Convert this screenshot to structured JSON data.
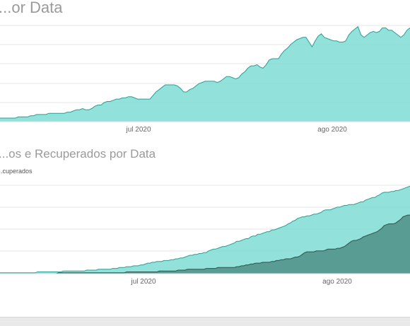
{
  "colors": {
    "confirmed": "#7fdcd3",
    "confirmed_line": "#2e9e94",
    "recovered": "#4f8f86",
    "recovered_line": "#2e524d",
    "title": "#9a9a9a",
    "gridline": "#e6e6e6",
    "tick": "#666666"
  },
  "chart_data": [
    {
      "type": "area",
      "title": "...or Data",
      "xlabel": "",
      "ylabel": "",
      "x_ticks": [
        "jul 2020",
        "ago 2020"
      ],
      "grid": true,
      "series": [
        {
          "values": [
            3,
            3,
            3,
            3,
            3,
            3,
            4,
            4,
            4,
            4,
            5,
            5,
            6,
            6,
            6,
            6,
            7,
            7,
            7,
            7,
            7,
            7,
            8,
            8,
            9,
            10,
            10,
            11,
            10,
            10,
            11,
            13,
            14,
            14,
            16,
            17,
            17,
            18,
            19,
            19,
            20,
            20,
            21,
            21,
            20,
            19,
            19,
            19,
            19,
            19,
            22,
            25,
            27,
            29,
            31,
            31,
            31,
            31,
            30,
            28,
            25,
            25,
            27,
            28,
            30,
            32,
            33,
            34,
            34,
            34,
            34,
            33,
            34,
            36,
            38,
            38,
            37,
            36,
            37,
            40,
            42,
            45,
            47,
            47,
            48,
            46,
            45,
            48,
            52,
            53,
            53,
            53,
            57,
            60,
            62,
            65,
            67,
            69,
            70,
            71,
            71,
            67,
            63,
            68,
            72,
            74,
            71,
            70,
            69,
            68,
            68,
            67,
            67,
            68,
            73,
            76,
            78,
            80,
            73,
            71,
            73,
            75,
            76,
            75,
            76,
            79,
            79,
            77,
            77,
            75,
            73,
            71,
            73,
            77,
            79
          ]
        }
      ]
    },
    {
      "type": "area",
      "title": "...os e Recuperados por Data",
      "legend_text": "...cuperados",
      "xlabel": "",
      "ylabel": "",
      "x_ticks": [
        "jul 2020",
        "ago 2020"
      ],
      "grid": true,
      "series": [
        {
          "values": [
            1,
            1,
            1,
            1,
            1,
            1,
            1,
            1,
            1,
            1,
            1,
            1,
            1,
            1,
            1,
            1,
            2,
            2,
            2,
            2,
            2,
            2,
            2,
            2,
            2,
            2,
            2,
            3,
            3,
            3,
            3,
            3,
            3,
            3,
            3,
            3,
            3,
            4,
            4,
            4,
            4,
            4,
            5,
            5,
            5,
            5,
            5,
            5,
            6,
            6,
            6,
            7,
            7,
            7,
            8,
            8,
            8,
            9,
            9,
            9,
            10,
            10,
            11,
            12,
            12,
            13,
            13,
            14,
            14,
            14,
            15,
            15,
            15,
            16,
            16,
            17,
            17,
            18,
            18,
            19,
            20,
            21,
            21,
            22,
            22,
            23,
            23,
            24,
            24,
            26,
            27,
            28,
            28,
            29,
            30,
            31,
            31,
            32,
            33,
            34,
            35,
            37,
            37,
            38,
            39,
            40,
            40,
            42,
            43,
            43,
            45,
            45,
            46,
            47,
            48,
            48,
            50,
            50,
            51,
            52,
            53,
            54,
            55,
            57,
            58,
            60,
            61,
            63,
            64,
            65,
            65,
            66,
            66,
            67,
            68,
            68,
            69,
            70,
            72,
            73,
            73,
            73,
            74,
            75,
            76,
            76,
            77,
            78,
            78,
            79,
            79,
            79,
            80,
            81,
            82,
            82,
            84,
            85,
            86,
            87,
            87,
            89,
            90,
            92,
            93,
            93,
            93,
            94,
            94,
            95,
            95,
            96,
            97,
            98,
            99,
            100
          ]
        },
        {
          "values": [
            0,
            0,
            0,
            0,
            0,
            0,
            0,
            0,
            0,
            0,
            0,
            0,
            0,
            0,
            0,
            0,
            0,
            0,
            0,
            0,
            0,
            0,
            0,
            0,
            0,
            1,
            1,
            1,
            1,
            1,
            1,
            1,
            1,
            1,
            1,
            1,
            1,
            1,
            1,
            1,
            1,
            1,
            1,
            1,
            1,
            1,
            1,
            1,
            1,
            1,
            1,
            1,
            1,
            1,
            2,
            2,
            2,
            2,
            2,
            2,
            2,
            2,
            2,
            2,
            2,
            2,
            2,
            2,
            3,
            3,
            3,
            3,
            3,
            3,
            3,
            3,
            4,
            4,
            4,
            4,
            5,
            5,
            5,
            5,
            5,
            5,
            5,
            5,
            6,
            6,
            6,
            6,
            6,
            7,
            7,
            7,
            7,
            7,
            7,
            7,
            7,
            8,
            8,
            9,
            9,
            10,
            10,
            11,
            11,
            12,
            12,
            12,
            13,
            13,
            13,
            13,
            14,
            14,
            15,
            15,
            16,
            16,
            17,
            17,
            17,
            18,
            19,
            19,
            20,
            22,
            24,
            25,
            25,
            25,
            25,
            26,
            26,
            26,
            26,
            27,
            28,
            28,
            28,
            28,
            29,
            29,
            30,
            31,
            33,
            35,
            37,
            38,
            38,
            39,
            40,
            42,
            43,
            44,
            45,
            46,
            47,
            48,
            50,
            52,
            55,
            56,
            57,
            57,
            57,
            58,
            60,
            62,
            65,
            66,
            67,
            67
          ]
        }
      ]
    }
  ]
}
